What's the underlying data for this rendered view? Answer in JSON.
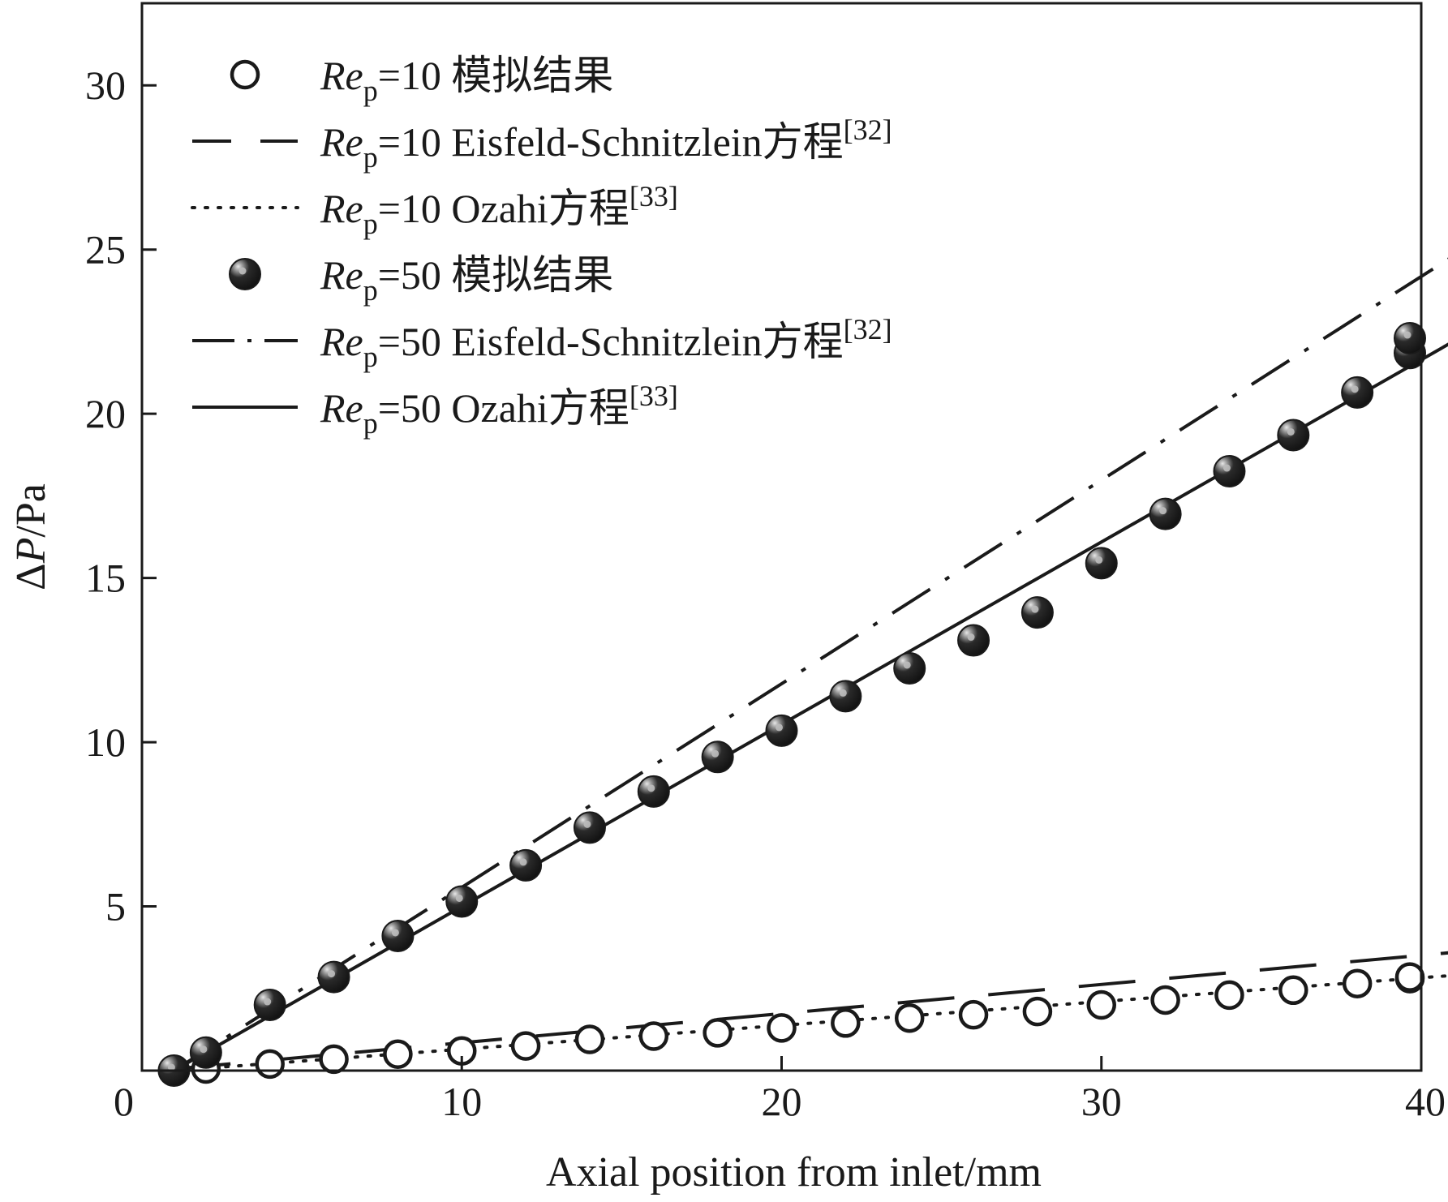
{
  "chart_data": {
    "type": "scatter",
    "xlabel": "Axial position from inlet/mm",
    "ylabel": {
      "delta": "Δ",
      "var": "P",
      "unit": "/Pa"
    },
    "xlim": [
      0,
      40
    ],
    "ylim": [
      0,
      32.5
    ],
    "xticks": [
      0,
      10,
      20,
      30,
      40
    ],
    "yticks": [
      5,
      10,
      15,
      20,
      25,
      30
    ],
    "grid": false,
    "legend_position": "top-left",
    "colors": {
      "ink": "#1a1a1a",
      "marker_highlight": "#bdbdbd"
    },
    "series": [
      {
        "kind": "markers-open",
        "legend": {
          "re": "Re",
          "sub": "p",
          "rest": "=10 模拟结果",
          "sup": ""
        },
        "x": [
          1,
          2,
          4,
          6,
          8,
          10,
          12,
          14,
          16,
          18,
          20,
          22,
          24,
          26,
          28,
          30,
          32,
          34,
          36,
          38,
          40,
          41
        ],
        "y": [
          0.0,
          0.05,
          0.2,
          0.35,
          0.5,
          0.6,
          0.75,
          0.95,
          1.05,
          1.15,
          1.3,
          1.45,
          1.6,
          1.7,
          1.8,
          2.0,
          2.15,
          2.3,
          2.45,
          2.65,
          2.8,
          2.85
        ]
      },
      {
        "kind": "line-dashed",
        "legend": {
          "re": "Re",
          "sub": "p",
          "rest": "=10 Eisfeld-Schnitzlein方程",
          "sup": "[32]"
        },
        "x": [
          1,
          41
        ],
        "y": [
          0.05,
          3.6
        ]
      },
      {
        "kind": "line-dotted",
        "legend": {
          "re": "Re",
          "sub": "p",
          "rest": "=10 Ozahi方程",
          "sup": "[33]"
        },
        "x": [
          1,
          41
        ],
        "y": [
          0.0,
          2.9
        ]
      },
      {
        "kind": "markers-filled",
        "legend": {
          "re": "Re",
          "sub": "p",
          "rest": "=50 模拟结果",
          "sup": ""
        },
        "x": [
          1,
          2,
          4,
          6,
          8,
          10,
          12,
          14,
          16,
          18,
          20,
          22,
          24,
          26,
          28,
          30,
          32,
          34,
          36,
          38,
          40,
          41
        ],
        "y": [
          0.0,
          0.55,
          2.0,
          2.85,
          4.1,
          5.15,
          6.25,
          7.4,
          8.5,
          9.55,
          10.35,
          11.4,
          12.25,
          13.1,
          13.95,
          15.45,
          16.95,
          18.25,
          19.35,
          20.65,
          21.85,
          22.3
        ]
      },
      {
        "kind": "line-dashdot",
        "legend": {
          "re": "Re",
          "sub": "p",
          "rest": "=50 Eisfeld-Schnitzlein方程",
          "sup": "[32]"
        },
        "x": [
          1,
          41
        ],
        "y": [
          0.0,
          24.8
        ]
      },
      {
        "kind": "line-solid",
        "legend": {
          "re": "Re",
          "sub": "p",
          "rest": "=50 Ozahi方程",
          "sup": "[33]"
        },
        "x": [
          1,
          41
        ],
        "y": [
          0.0,
          22.2
        ]
      }
    ]
  }
}
